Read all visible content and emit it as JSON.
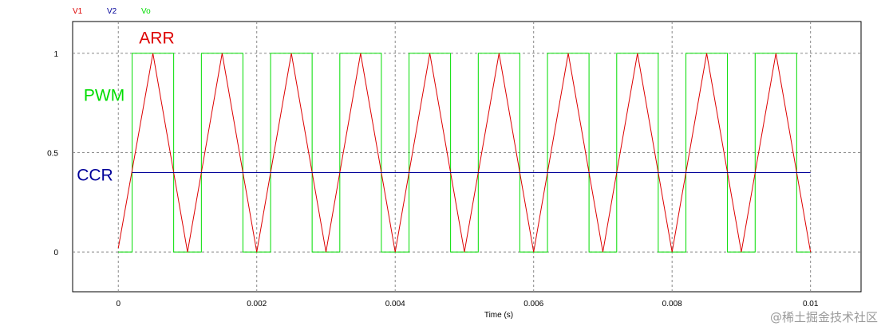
{
  "chart_data": {
    "type": "line",
    "xlabel": "Time (s)",
    "ylabel": "",
    "xlim": [
      -0.00066,
      0.01073
    ],
    "ylim": [
      -0.2,
      1.16
    ],
    "x_ticks": [
      0,
      0.002,
      0.004,
      0.006,
      0.008,
      0.01
    ],
    "x_tick_labels": [
      "0",
      "0.002",
      "0.004",
      "0.006",
      "0.008",
      "0.01"
    ],
    "y_ticks": [
      0,
      0.5,
      1
    ],
    "y_tick_labels": [
      "0",
      "0.5",
      "1"
    ],
    "grid": true,
    "legend_position": "top-left",
    "series": [
      {
        "name": "V1",
        "color": "#dd0000",
        "x": [
          0,
          0.0005,
          0.001,
          0.0015,
          0.002,
          0.0025,
          0.003,
          0.0035,
          0.004,
          0.0045,
          0.005,
          0.0055,
          0.006,
          0.0065,
          0.007,
          0.0075,
          0.008,
          0.0085,
          0.009,
          0.0095,
          0.01
        ],
        "y": [
          0.02,
          1,
          0,
          1,
          0,
          1,
          0,
          1,
          0,
          1,
          0,
          1,
          0,
          1,
          0,
          1,
          0,
          1,
          0,
          1,
          0
        ]
      },
      {
        "name": "V2",
        "color": "#000099",
        "x": [
          0.0002,
          0.01
        ],
        "y": [
          0.4,
          0.4
        ]
      },
      {
        "name": "Vo",
        "color": "#00dd00",
        "x": [
          0,
          0.0002,
          0.0002,
          0.0008,
          0.0008,
          0.0012,
          0.0012,
          0.0018,
          0.0018,
          0.0022,
          0.0022,
          0.0028,
          0.0028,
          0.0032,
          0.0032,
          0.0038,
          0.0038,
          0.0042,
          0.0042,
          0.0048,
          0.0048,
          0.0052,
          0.0052,
          0.0058,
          0.0058,
          0.0062,
          0.0062,
          0.0068,
          0.0068,
          0.0072,
          0.0072,
          0.0078,
          0.0078,
          0.0082,
          0.0082,
          0.0088,
          0.0088,
          0.0092,
          0.0092,
          0.0098,
          0.0098,
          0.01
        ],
        "y": [
          0,
          0,
          1,
          1,
          0,
          0,
          1,
          1,
          0,
          0,
          1,
          1,
          0,
          0,
          1,
          1,
          0,
          0,
          1,
          1,
          0,
          0,
          1,
          1,
          0,
          0,
          1,
          1,
          0,
          0,
          1,
          1,
          0,
          0,
          1,
          1,
          0,
          0,
          1,
          1,
          0,
          0
        ]
      }
    ],
    "annotations": [
      {
        "text": "ARR",
        "color": "#dd0000",
        "x": 0.0003,
        "y": 1.05
      },
      {
        "text": "PWM",
        "color": "#00dd00",
        "x": -0.0005,
        "y": 0.76
      },
      {
        "text": "CCR",
        "color": "#000099",
        "x": -0.0006,
        "y": 0.36
      }
    ]
  },
  "watermark": "@稀土掘金技术社区"
}
